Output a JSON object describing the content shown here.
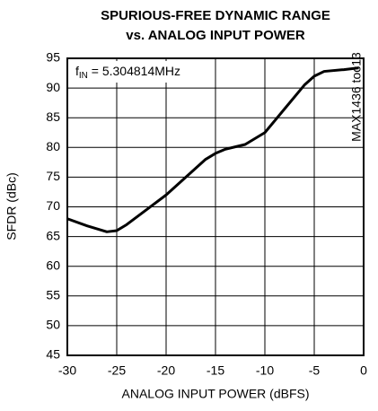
{
  "chart_data": {
    "type": "line",
    "title": [
      "SPURIOUS-FREE DYNAMIC RANGE",
      "vs. ANALOG INPUT POWER"
    ],
    "x_label": "ANALOG INPUT POWER (dBFS)",
    "y_label": "SFDR (dBc)",
    "annotation": [
      "f",
      "IN",
      " = 5.304814MHz"
    ],
    "side_label": "MAX1436 toc13",
    "x": [
      -30,
      -28,
      -26,
      -25,
      -24,
      -22,
      -20,
      -18,
      -16,
      -15,
      -14,
      -12,
      -10,
      -8,
      -6,
      -5,
      -4,
      -2,
      -0.5
    ],
    "series": [
      {
        "name": "SFDR",
        "color": "#000000",
        "values": [
          68,
          66.8,
          65.8,
          66,
          67,
          69.5,
          72,
          75,
          78,
          79,
          79.7,
          80.5,
          82.5,
          86.5,
          90.5,
          92,
          92.8,
          93.1,
          93.4
        ]
      }
    ],
    "xlim": [
      -30,
      0
    ],
    "xticks": [
      -30,
      -25,
      -20,
      -15,
      -10,
      -5,
      0
    ],
    "ylim": [
      45,
      95
    ],
    "yticks": [
      45,
      50,
      55,
      60,
      65,
      70,
      75,
      80,
      85,
      90,
      95
    ],
    "grid": true
  }
}
